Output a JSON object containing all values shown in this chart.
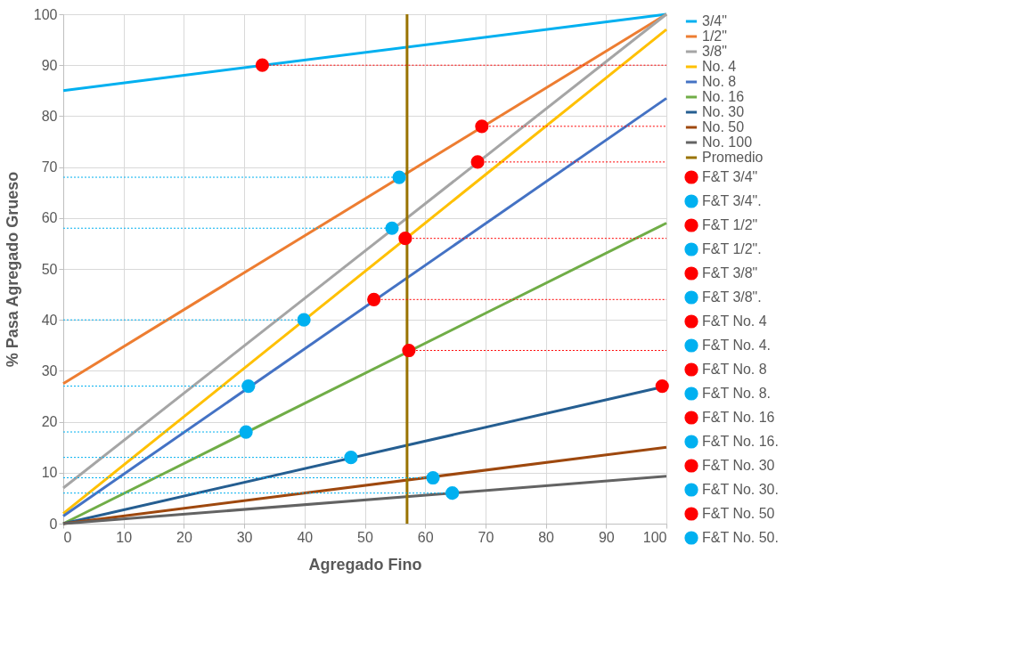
{
  "chart_data": {
    "type": "line",
    "xlabel": "Agregado Fino",
    "ylabel": "% Pasa Agregado Grueso",
    "xlim": [
      0,
      100
    ],
    "ylim": [
      0,
      100
    ],
    "xticks": [
      0,
      10,
      20,
      30,
      40,
      50,
      60,
      70,
      80,
      90,
      100
    ],
    "yticks": [
      0,
      10,
      20,
      30,
      40,
      50,
      60,
      70,
      80,
      90,
      100
    ],
    "grid": true,
    "legend": "right",
    "series": [
      {
        "name": "3/4\"",
        "line_style": "solid",
        "color": "#00b0f0",
        "x": [
          0,
          100
        ],
        "values": [
          85,
          100
        ]
      },
      {
        "name": "1/2\"",
        "line_style": "solid",
        "color": "#ed7d31",
        "x": [
          0,
          100
        ],
        "values": [
          27.5,
          100
        ]
      },
      {
        "name": "3/8\"",
        "line_style": "solid",
        "color": "#a5a5a5",
        "x": [
          0,
          100
        ],
        "values": [
          7,
          100
        ]
      },
      {
        "name": "No. 4",
        "line_style": "solid",
        "color": "#ffc000",
        "x": [
          0,
          100
        ],
        "values": [
          2,
          97
        ]
      },
      {
        "name": "No. 8",
        "line_style": "solid",
        "color": "#4472c4",
        "x": [
          0,
          100
        ],
        "values": [
          1.5,
          83.5
        ]
      },
      {
        "name": "No. 16",
        "line_style": "solid",
        "color": "#70ad47",
        "x": [
          0,
          100
        ],
        "values": [
          0,
          59
        ]
      },
      {
        "name": "No. 30",
        "line_style": "solid",
        "color": "#255e91",
        "x": [
          0,
          100
        ],
        "values": [
          0,
          27
        ]
      },
      {
        "name": "No. 50",
        "line_style": "solid",
        "color": "#9e480e",
        "x": [
          0,
          100
        ],
        "values": [
          0,
          15
        ]
      },
      {
        "name": "No. 100",
        "line_style": "solid",
        "color": "#636363",
        "x": [
          0,
          100
        ],
        "values": [
          0,
          9.3
        ]
      },
      {
        "name": "Promedio",
        "line_style": "solid",
        "color": "#997300",
        "x": [
          57,
          57
        ],
        "values": [
          0,
          100
        ]
      },
      {
        "type": "line",
        "line_style": "dotted",
        "color": "#ff0000",
        "x": [
          33,
          100
        ],
        "values": [
          90,
          90
        ]
      },
      {
        "name": "F&T 3/4\"",
        "type": "scatter",
        "marker": "circle",
        "color": "#ff0000",
        "x": [
          33
        ],
        "values": [
          90
        ]
      },
      {
        "type": "line",
        "line_style": "dotted",
        "color": "#00b0f0",
        "x": [
          0,
          55.7
        ],
        "values": [
          68,
          68
        ]
      },
      {
        "name": "F&T 3/4\".",
        "type": "scatter",
        "marker": "circle",
        "color": "#00b0f0",
        "x": [
          55.7
        ],
        "values": [
          68
        ]
      },
      {
        "type": "line",
        "line_style": "dotted",
        "color": "#ff0000",
        "x": [
          69.4,
          100
        ],
        "values": [
          78,
          78
        ]
      },
      {
        "name": "F&T 1/2\"",
        "type": "scatter",
        "marker": "circle",
        "color": "#ff0000",
        "x": [
          69.4
        ],
        "values": [
          78
        ]
      },
      {
        "type": "line",
        "line_style": "dotted",
        "color": "#00b0f0",
        "x": [
          0,
          54.5
        ],
        "values": [
          58,
          58
        ]
      },
      {
        "name": "F&T 1/2\".",
        "type": "scatter",
        "marker": "circle",
        "color": "#00b0f0",
        "x": [
          54.5
        ],
        "values": [
          58
        ]
      },
      {
        "type": "line",
        "line_style": "dotted",
        "color": "#ff0000",
        "x": [
          68.7,
          100
        ],
        "values": [
          71,
          71
        ]
      },
      {
        "name": "F&T 3/8\"",
        "type": "scatter",
        "marker": "circle",
        "color": "#ff0000",
        "x": [
          68.7
        ],
        "values": [
          71
        ]
      },
      {
        "type": "line",
        "line_style": "dotted",
        "color": "#00b0f0",
        "x": [
          0,
          39.9
        ],
        "values": [
          40,
          40
        ]
      },
      {
        "name": "F&T 3/8\".",
        "type": "scatter",
        "marker": "circle",
        "color": "#00b0f0",
        "x": [
          39.9
        ],
        "values": [
          40
        ]
      },
      {
        "type": "line",
        "line_style": "dotted",
        "color": "#ff0000",
        "x": [
          56.7,
          100
        ],
        "values": [
          56,
          56
        ]
      },
      {
        "name": "F&T No. 4",
        "type": "scatter",
        "marker": "circle",
        "color": "#ff0000",
        "x": [
          56.7
        ],
        "values": [
          56
        ]
      },
      {
        "type": "line",
        "line_style": "dotted",
        "color": "#00b0f0",
        "x": [
          0,
          30.7
        ],
        "values": [
          27,
          27
        ]
      },
      {
        "name": "F&T No. 4.",
        "type": "scatter",
        "marker": "circle",
        "color": "#00b0f0",
        "x": [
          30.7
        ],
        "values": [
          27
        ]
      },
      {
        "type": "line",
        "line_style": "dotted",
        "color": "#ff0000",
        "x": [
          51.5,
          100
        ],
        "values": [
          44,
          44
        ]
      },
      {
        "name": "F&T No. 8",
        "type": "scatter",
        "marker": "circle",
        "color": "#ff0000",
        "x": [
          51.5
        ],
        "values": [
          44
        ]
      },
      {
        "type": "line",
        "line_style": "dotted",
        "color": "#00b0f0",
        "x": [
          0,
          30.3
        ],
        "values": [
          18,
          18
        ]
      },
      {
        "name": "F&T No. 8.",
        "type": "scatter",
        "marker": "circle",
        "color": "#00b0f0",
        "x": [
          30.3
        ],
        "values": [
          18
        ]
      },
      {
        "type": "line",
        "line_style": "dotted",
        "color": "#ff0000",
        "x": [
          57.3,
          100
        ],
        "values": [
          34,
          34
        ]
      },
      {
        "name": "F&T No. 16",
        "type": "scatter",
        "marker": "circle",
        "color": "#ff0000",
        "x": [
          57.3
        ],
        "values": [
          34
        ]
      },
      {
        "type": "line",
        "line_style": "dotted",
        "color": "#00b0f0",
        "x": [
          0,
          47.7
        ],
        "values": [
          13,
          13
        ]
      },
      {
        "name": "F&T No. 16.",
        "type": "scatter",
        "marker": "circle",
        "color": "#00b0f0",
        "x": [
          47.7
        ],
        "values": [
          13
        ]
      },
      {
        "name": "F&T No. 30",
        "type": "scatter",
        "marker": "circle",
        "color": "#ff0000",
        "x": [
          99.3
        ],
        "values": [
          27
        ]
      },
      {
        "type": "line",
        "line_style": "dotted",
        "color": "#00b0f0",
        "x": [
          0,
          61.3
        ],
        "values": [
          9,
          9
        ]
      },
      {
        "name": "F&T No. 30.",
        "type": "scatter",
        "marker": "circle",
        "color": "#00b0f0",
        "x": [
          61.3
        ],
        "values": [
          9
        ]
      },
      {
        "name": "F&T No. 50",
        "type": "scatter",
        "marker": "circle",
        "color": "#ff0000",
        "x": [
          null
        ],
        "values": [
          null
        ]
      },
      {
        "type": "line",
        "line_style": "dotted",
        "color": "#00b0f0",
        "x": [
          0,
          64.5
        ],
        "values": [
          6,
          6
        ]
      },
      {
        "name": "F&T No. 50.",
        "type": "scatter",
        "marker": "circle",
        "color": "#00b0f0",
        "x": [
          64.5
        ],
        "values": [
          6
        ]
      }
    ]
  }
}
